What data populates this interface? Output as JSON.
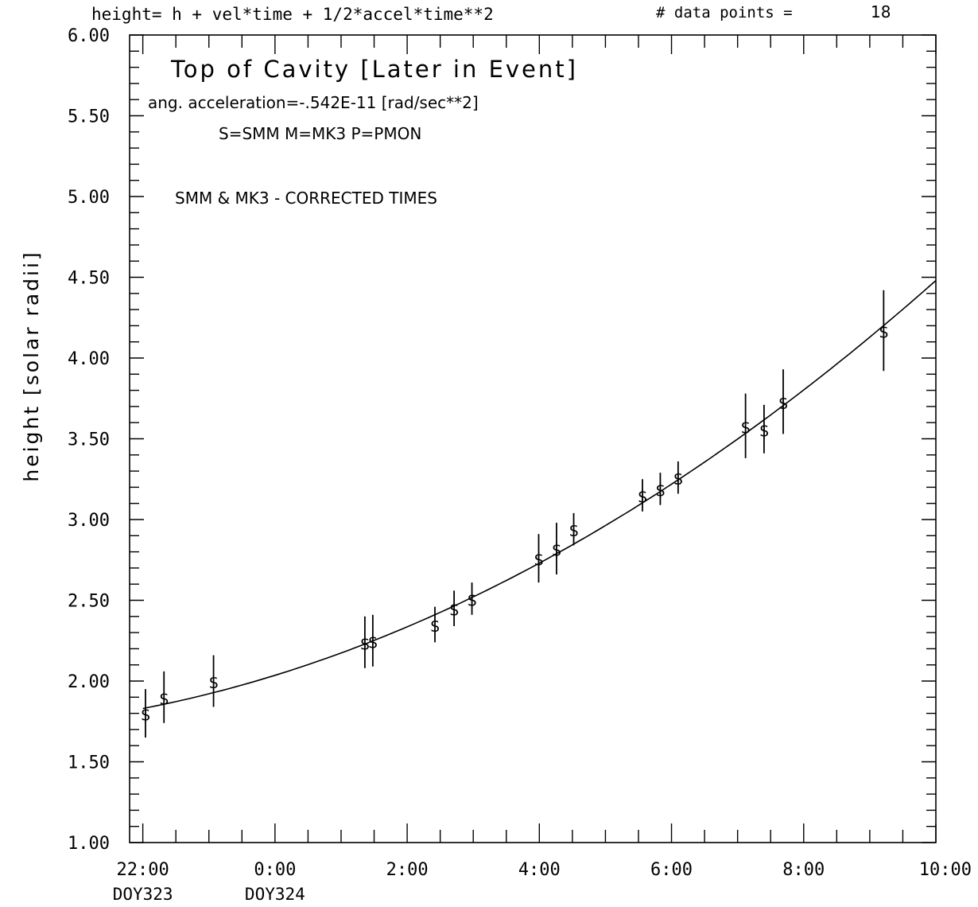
{
  "header": {
    "equation": "height= h + vel*time + 1/2*accel*time**2",
    "points_label": "# data points =",
    "points_count": "18"
  },
  "annotations": {
    "title": "Top of Cavity   [Later in Event]",
    "acceleration": "ang. acceleration=-.542E-11 [rad/sec**2]",
    "legend": "S=SMM   M=MK3   P=PMON",
    "note": "SMM & MK3 - CORRECTED TIMES"
  },
  "chart_data": {
    "type": "scatter",
    "ylabel": "height [solar radii]",
    "xlabel": "",
    "xlim": [
      -2.2,
      10.0
    ],
    "ylim": [
      1.0,
      6.0
    ],
    "x_unit": "hours from 0:00 DOY324",
    "x_ticks": [
      {
        "value": -2.0,
        "label": "22:00",
        "sublabel": "DOY323"
      },
      {
        "value": 0.0,
        "label": "0:00",
        "sublabel": "DOY324"
      },
      {
        "value": 2.0,
        "label": "2:00",
        "sublabel": ""
      },
      {
        "value": 4.0,
        "label": "4:00",
        "sublabel": ""
      },
      {
        "value": 6.0,
        "label": "6:00",
        "sublabel": ""
      },
      {
        "value": 8.0,
        "label": "8:00",
        "sublabel": ""
      },
      {
        "value": 10.0,
        "label": "10:00",
        "sublabel": ""
      }
    ],
    "y_ticks": [
      {
        "value": 1.0,
        "label": "1.00"
      },
      {
        "value": 1.5,
        "label": "1.50"
      },
      {
        "value": 2.0,
        "label": "2.00"
      },
      {
        "value": 2.5,
        "label": "2.50"
      },
      {
        "value": 3.0,
        "label": "3.00"
      },
      {
        "value": 3.5,
        "label": "3.50"
      },
      {
        "value": 4.0,
        "label": "4.00"
      },
      {
        "value": 4.5,
        "label": "4.50"
      },
      {
        "value": 5.0,
        "label": "5.00"
      },
      {
        "value": 5.5,
        "label": "5.50"
      },
      {
        "value": 6.0,
        "label": "6.00"
      }
    ],
    "series": [
      {
        "name": "S=SMM",
        "marker": "$",
        "points": [
          {
            "x": -1.96,
            "y": 1.8,
            "err": 0.15
          },
          {
            "x": -1.68,
            "y": 1.9,
            "err": 0.16
          },
          {
            "x": -0.93,
            "y": 2.0,
            "err": 0.16
          },
          {
            "x": 1.36,
            "y": 2.24,
            "err": 0.16
          },
          {
            "x": 1.48,
            "y": 2.25,
            "err": 0.16
          },
          {
            "x": 2.42,
            "y": 2.35,
            "err": 0.11
          },
          {
            "x": 2.71,
            "y": 2.45,
            "err": 0.11
          },
          {
            "x": 2.98,
            "y": 2.51,
            "err": 0.1
          },
          {
            "x": 3.99,
            "y": 2.76,
            "err": 0.15
          },
          {
            "x": 4.26,
            "y": 2.82,
            "err": 0.16
          },
          {
            "x": 4.52,
            "y": 2.94,
            "err": 0.1
          },
          {
            "x": 5.56,
            "y": 3.15,
            "err": 0.1
          },
          {
            "x": 5.83,
            "y": 3.19,
            "err": 0.1
          },
          {
            "x": 6.1,
            "y": 3.26,
            "err": 0.1
          },
          {
            "x": 7.12,
            "y": 3.58,
            "err": 0.2
          },
          {
            "x": 7.4,
            "y": 3.56,
            "err": 0.15
          },
          {
            "x": 7.69,
            "y": 3.73,
            "err": 0.2
          },
          {
            "x": 9.21,
            "y": 4.17,
            "err": 0.25
          }
        ]
      }
    ],
    "fit": {
      "model": "height = h + vel*time + 1/2*accel*time**2",
      "curve": [
        {
          "x": -2.0,
          "y": 1.83
        },
        {
          "x": 0.0,
          "y": 2.04
        },
        {
          "x": 2.0,
          "y": 2.31
        },
        {
          "x": 4.0,
          "y": 2.73
        },
        {
          "x": 6.0,
          "y": 3.25
        },
        {
          "x": 8.0,
          "y": 3.84
        },
        {
          "x": 10.0,
          "y": 4.48
        }
      ]
    },
    "grid": false
  }
}
